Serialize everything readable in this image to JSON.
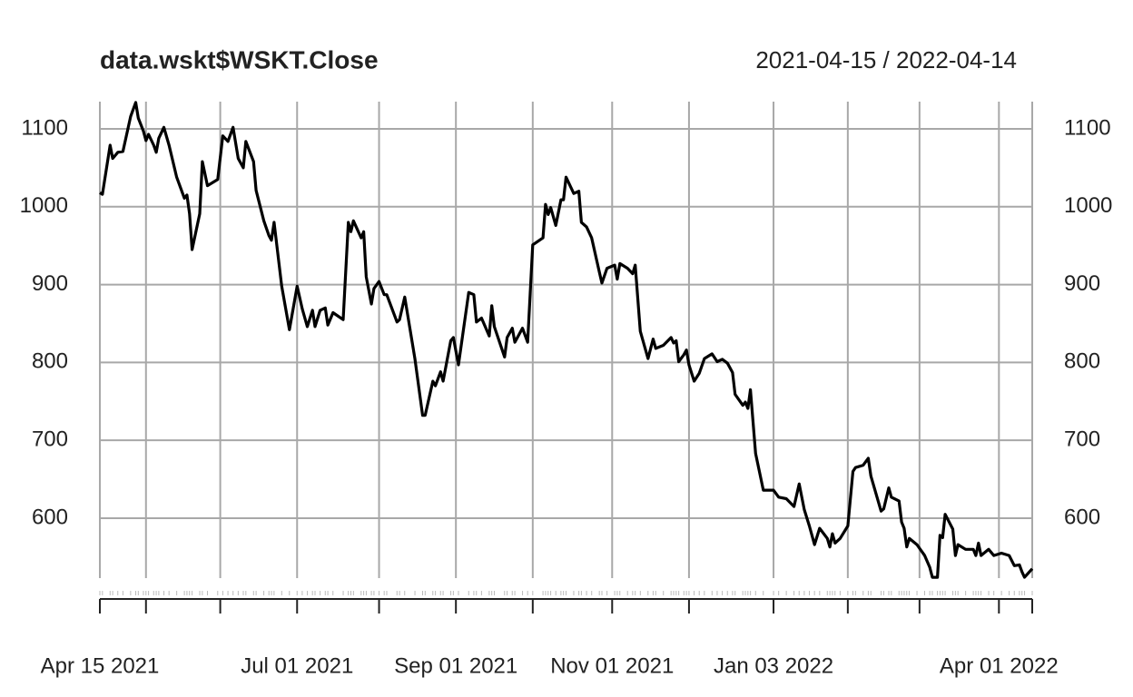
{
  "chart_data": {
    "type": "line",
    "title": "data.wskt$WSKT.Close",
    "subtitle": "2021-04-15 / 2022-04-14",
    "color": "#000000",
    "grid": true,
    "xlim": [
      "2021-04-15",
      "2022-04-14"
    ],
    "xticks": [
      {
        "value": "2021-04-15",
        "label": "Apr 15 2021"
      },
      {
        "value": "2021-07-01",
        "label": "Jul 01 2021"
      },
      {
        "value": "2021-09-01",
        "label": "Sep 01 2021"
      },
      {
        "value": "2021-11-01",
        "label": "Nov 01 2021"
      },
      {
        "value": "2022-01-03",
        "label": "Jan 03 2022"
      },
      {
        "value": "2022-04-01",
        "label": "Apr 01 2022"
      }
    ],
    "xgrid": [
      "2021-05-03",
      "2021-06-01",
      "2021-08-02",
      "2021-10-01",
      "2021-12-01",
      "2022-02-01",
      "2022-03-01",
      "2022-04-14"
    ],
    "ylim": [
      523,
      1135
    ],
    "yticks": [
      600,
      700,
      800,
      900,
      1000,
      1100
    ],
    "x": [
      "2021-04-15",
      "2021-04-16",
      "2021-04-19",
      "2021-04-20",
      "2021-04-22",
      "2021-04-24",
      "2021-04-27",
      "2021-04-29",
      "2021-04-30",
      "2021-05-02",
      "2021-05-03",
      "2021-05-04",
      "2021-05-06",
      "2021-05-07",
      "2021-05-08",
      "2021-05-10",
      "2021-05-12",
      "2021-05-15",
      "2021-05-18",
      "2021-05-19",
      "2021-05-20",
      "2021-05-21",
      "2021-05-24",
      "2021-05-25",
      "2021-05-27",
      "2021-05-31",
      "2021-06-02",
      "2021-06-04",
      "2021-06-06",
      "2021-06-08",
      "2021-06-10",
      "2021-06-11",
      "2021-06-14",
      "2021-06-15",
      "2021-06-18",
      "2021-06-20",
      "2021-06-21",
      "2021-06-22",
      "2021-06-25",
      "2021-06-28",
      "2021-07-01",
      "2021-07-03",
      "2021-07-05",
      "2021-07-07",
      "2021-07-08",
      "2021-07-10",
      "2021-07-12",
      "2021-07-13",
      "2021-07-15",
      "2021-07-19",
      "2021-07-21",
      "2021-07-22",
      "2021-07-23",
      "2021-07-26",
      "2021-07-27",
      "2021-07-28",
      "2021-07-30",
      "2021-07-31",
      "2021-08-02",
      "2021-08-04",
      "2021-08-05",
      "2021-08-09",
      "2021-08-10",
      "2021-08-12",
      "2021-08-16",
      "2021-08-19",
      "2021-08-20",
      "2021-08-23",
      "2021-08-24",
      "2021-08-26",
      "2021-08-27",
      "2021-08-30",
      "2021-08-31",
      "2021-09-02",
      "2021-09-06",
      "2021-09-08",
      "2021-09-09",
      "2021-09-11",
      "2021-09-14",
      "2021-09-15",
      "2021-09-16",
      "2021-09-20",
      "2021-09-21",
      "2021-09-23",
      "2021-09-24",
      "2021-09-27",
      "2021-09-29",
      "2021-10-01",
      "2021-10-05",
      "2021-10-06",
      "2021-10-07",
      "2021-10-08",
      "2021-10-10",
      "2021-10-12",
      "2021-10-13",
      "2021-10-14",
      "2021-10-17",
      "2021-10-19",
      "2021-10-20",
      "2021-10-22",
      "2021-10-24",
      "2021-10-27",
      "2021-10-28",
      "2021-10-30",
      "2021-11-02",
      "2021-11-03",
      "2021-11-04",
      "2021-11-07",
      "2021-11-09",
      "2021-11-10",
      "2021-11-12",
      "2021-11-15",
      "2021-11-17",
      "2021-11-18",
      "2021-11-21",
      "2021-11-24",
      "2021-11-25",
      "2021-11-26",
      "2021-11-27",
      "2021-11-29",
      "2021-11-30",
      "2021-12-01",
      "2021-12-03",
      "2021-12-05",
      "2021-12-07",
      "2021-12-10",
      "2021-12-12",
      "2021-12-14",
      "2021-12-16",
      "2021-12-18",
      "2021-12-19",
      "2021-12-22",
      "2021-12-23",
      "2021-12-24",
      "2021-12-25",
      "2021-12-27",
      "2021-12-30",
      "2022-01-03",
      "2022-01-05",
      "2022-01-08",
      "2022-01-11",
      "2022-01-13",
      "2022-01-15",
      "2022-01-17",
      "2022-01-19",
      "2022-01-21",
      "2022-01-24",
      "2022-01-25",
      "2022-01-26",
      "2022-01-27",
      "2022-01-29",
      "2022-02-01",
      "2022-02-03",
      "2022-02-04",
      "2022-02-07",
      "2022-02-09",
      "2022-02-10",
      "2022-02-14",
      "2022-02-15",
      "2022-02-17",
      "2022-02-18",
      "2022-02-21",
      "2022-02-22",
      "2022-02-23",
      "2022-02-24",
      "2022-02-25",
      "2022-02-28",
      "2022-03-03",
      "2022-03-05",
      "2022-03-06",
      "2022-03-08",
      "2022-03-09",
      "2022-03-10",
      "2022-03-11",
      "2022-03-14",
      "2022-03-15",
      "2022-03-16",
      "2022-03-19",
      "2022-03-22",
      "2022-03-23",
      "2022-03-24",
      "2022-03-25",
      "2022-03-28",
      "2022-03-30",
      "2022-04-02",
      "2022-04-05",
      "2022-04-07",
      "2022-04-09",
      "2022-04-10",
      "2022-04-11",
      "2022-04-14"
    ],
    "values": [
      1018,
      1016,
      1079,
      1062,
      1070,
      1071,
      1116,
      1134,
      1114,
      1097,
      1085,
      1093,
      1079,
      1070,
      1088,
      1102,
      1079,
      1038,
      1011,
      1015,
      991,
      945,
      991,
      1058,
      1027,
      1035,
      1091,
      1084,
      1102,
      1062,
      1050,
      1084,
      1058,
      1021,
      982,
      963,
      957,
      980,
      898,
      842,
      898,
      869,
      846,
      867,
      846,
      867,
      870,
      848,
      864,
      855,
      980,
      968,
      982,
      960,
      968,
      910,
      875,
      895,
      904,
      887,
      887,
      852,
      855,
      884,
      805,
      732,
      732,
      776,
      770,
      788,
      776,
      828,
      832,
      797,
      890,
      887,
      852,
      857,
      834,
      873,
      846,
      807,
      832,
      844,
      826,
      844,
      826,
      951,
      960,
      1003,
      990,
      999,
      976,
      1009,
      1009,
      1038,
      1017,
      1020,
      980,
      974,
      960,
      916,
      902,
      921,
      925,
      907,
      927,
      921,
      914,
      925,
      840,
      805,
      830,
      818,
      822,
      832,
      825,
      828,
      801,
      810,
      816,
      797,
      776,
      786,
      805,
      811,
      801,
      804,
      799,
      787,
      759,
      745,
      749,
      741,
      765,
      683,
      636,
      636,
      627,
      625,
      615,
      644,
      611,
      590,
      566,
      587,
      574,
      563,
      580,
      568,
      574,
      590,
      660,
      665,
      668,
      677,
      654,
      609,
      612,
      639,
      627,
      622,
      595,
      587,
      563,
      574,
      566,
      552,
      537,
      524,
      524,
      578,
      575,
      605,
      586,
      552,
      566,
      560,
      560,
      552,
      568,
      552,
      560,
      552,
      555,
      552,
      539,
      540,
      531,
      524,
      535
    ]
  }
}
